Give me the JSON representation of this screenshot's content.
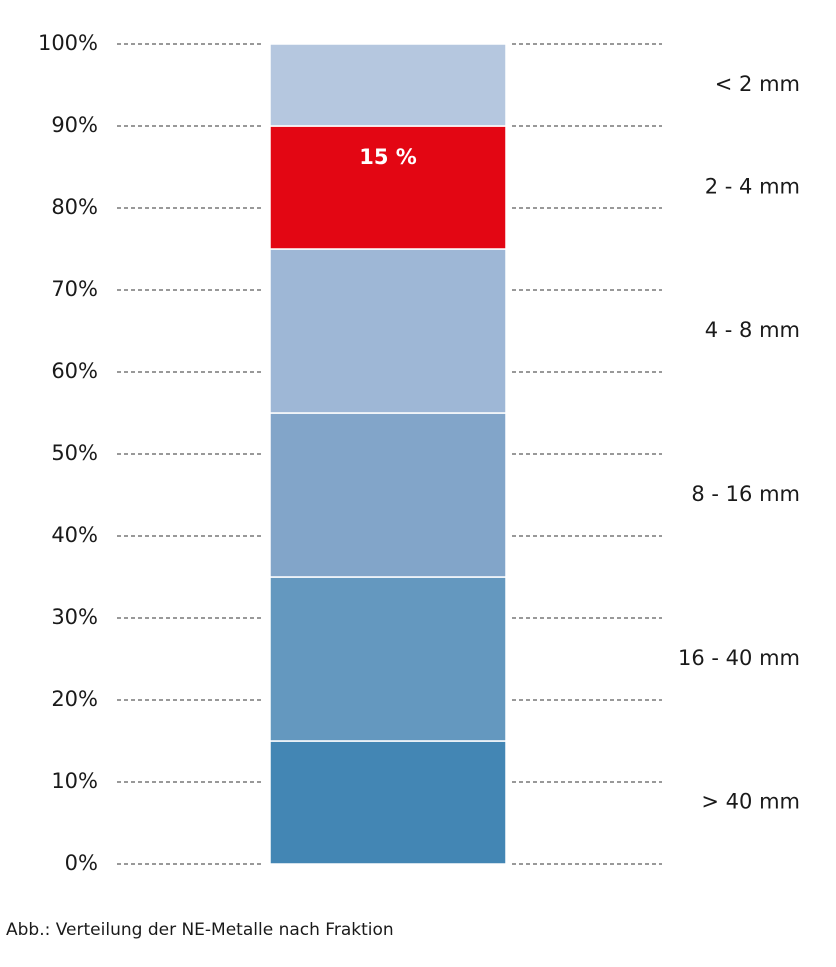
{
  "chart_data": {
    "type": "stacked_bar",
    "categories": [
      null
    ],
    "series": [
      {
        "name": "> 40 mm",
        "color": "#4386b4",
        "values": [
          15
        ]
      },
      {
        "name": "16 - 40 mm",
        "color": "#6498bf",
        "values": [
          20
        ]
      },
      {
        "name": "8 - 16 mm",
        "color": "#82a5c9",
        "values": [
          20
        ]
      },
      {
        "name": "4 - 8 mm",
        "color": "#9eb7d6",
        "values": [
          20
        ]
      },
      {
        "name": "2 - 4 mm",
        "color": "#e30613",
        "values": [
          15
        ],
        "value_labels": [
          "15 %"
        ]
      },
      {
        "name": "< 2 mm",
        "color": "#b5c7df",
        "values": [
          10
        ]
      }
    ],
    "ylim": [
      0,
      100
    ],
    "yticks": [
      {
        "value": 0,
        "label": "0%"
      },
      {
        "value": 10,
        "label": "10%"
      },
      {
        "value": 20,
        "label": "20%"
      },
      {
        "value": 30,
        "label": "30%"
      },
      {
        "value": 40,
        "label": "40%"
      },
      {
        "value": 50,
        "label": "50%"
      },
      {
        "value": 60,
        "label": "60%"
      },
      {
        "value": 70,
        "label": "70%"
      },
      {
        "value": 80,
        "label": "80%"
      },
      {
        "value": 90,
        "label": "90%"
      },
      {
        "value": 100,
        "label": "100%"
      }
    ],
    "grid": true,
    "caption": "Abb.: Verteilung der NE-Metalle nach Fraktion"
  }
}
